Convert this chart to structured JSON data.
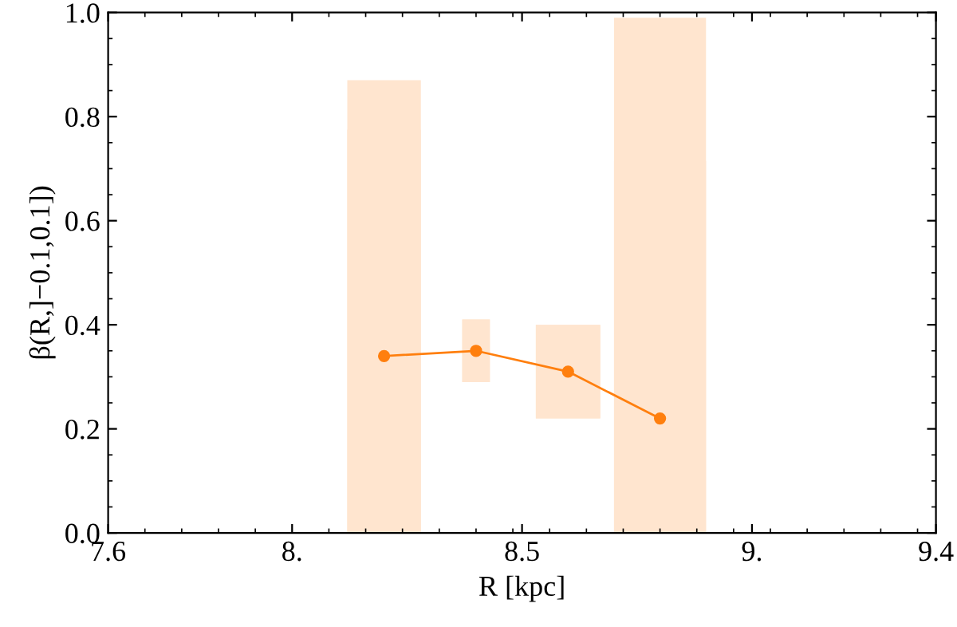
{
  "chart_data": {
    "type": "line",
    "xlabel": "R [kpc]",
    "ylabel": "β(R,]−0.1,0.1])",
    "x": [
      8.2,
      8.4,
      8.6,
      8.8
    ],
    "series": [
      {
        "color": "#ff7f0e",
        "values": [
          0.34,
          0.35,
          0.31,
          0.22
        ],
        "errors": [
          [
            0,
            0.87
          ],
          [
            0.29,
            0.41
          ],
          [
            0.22,
            0.4
          ],
          [
            0,
            0.99
          ]
        ],
        "xerrors": [
          [
            8.12,
            8.28
          ],
          [
            8.37,
            8.43
          ],
          [
            8.53,
            8.67
          ],
          [
            8.7,
            8.9
          ]
        ]
      }
    ],
    "marker": "circle",
    "line_style": "solid",
    "grid": false,
    "xlim": [
      7.6,
      9.4
    ],
    "ylim": [
      0,
      1.0
    ],
    "xticks": [
      7.6,
      {
        "value": 8,
        "label": "8."
      },
      8.5,
      {
        "value": 9,
        "label": "9."
      },
      9.4
    ],
    "yticks": [
      {
        "value": 0,
        "label": "0.0"
      },
      0.2,
      0.4,
      0.6,
      0.8,
      {
        "value": 1.0,
        "label": "1.0"
      }
    ]
  }
}
